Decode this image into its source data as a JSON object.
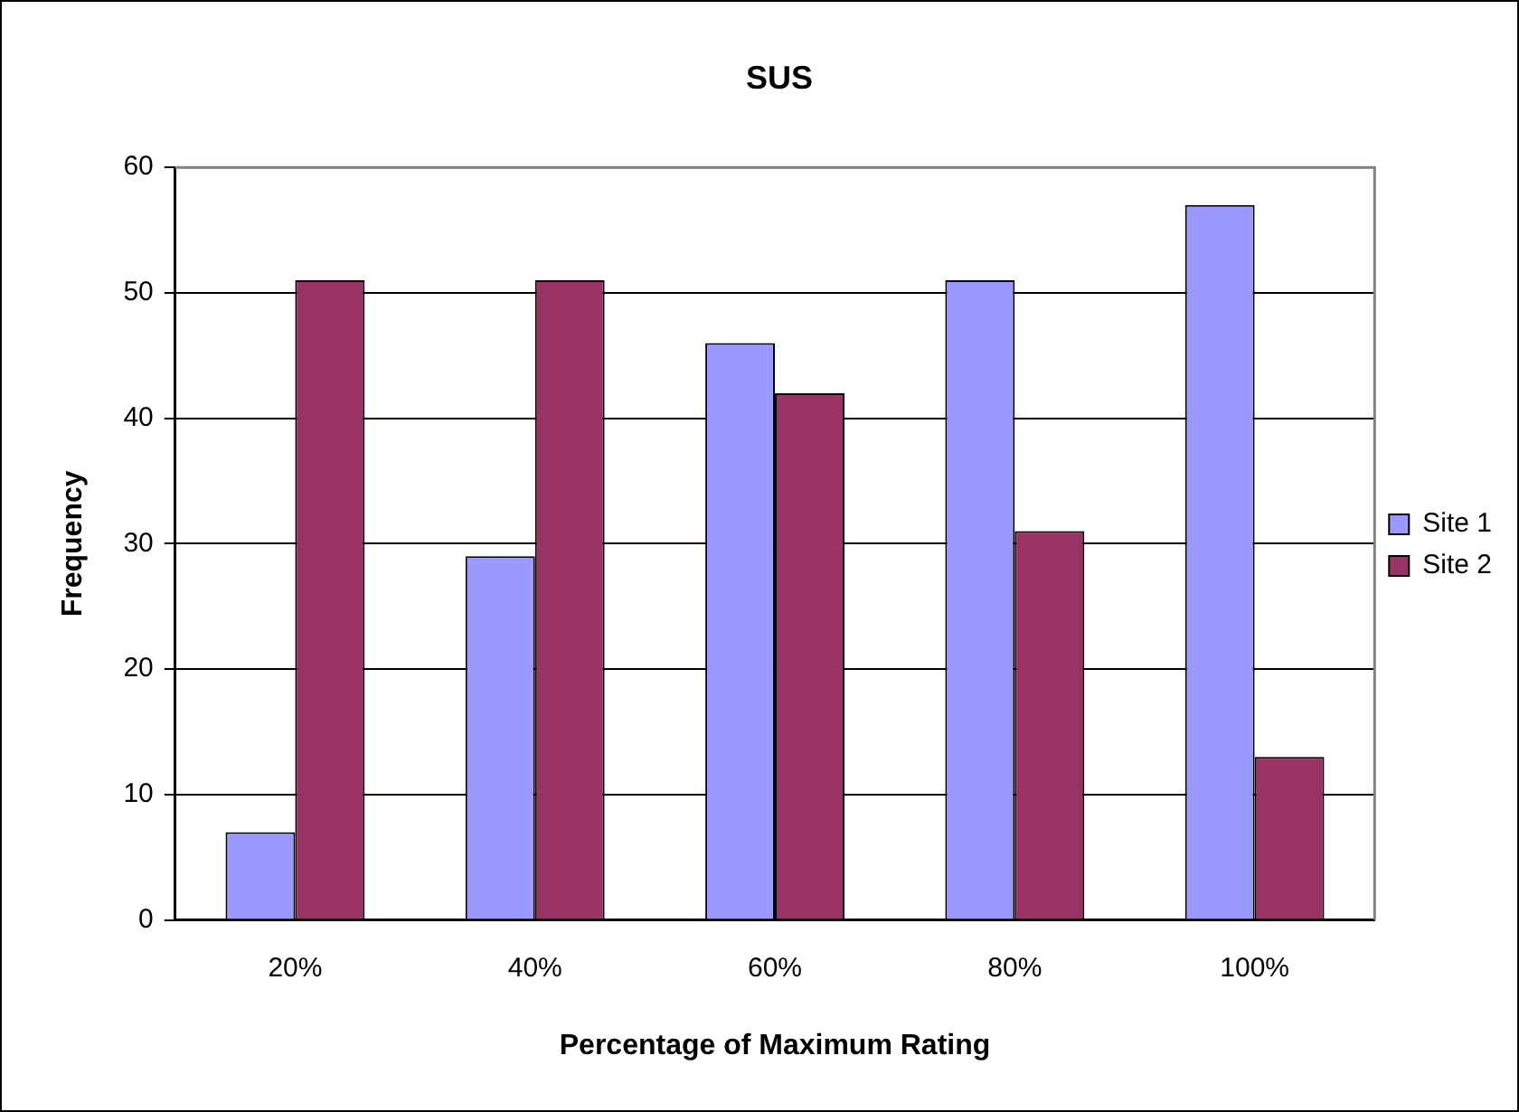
{
  "chart_data": {
    "type": "bar",
    "title": "SUS",
    "xlabel": "Percentage of Maximum Rating",
    "ylabel": "Frequency",
    "categories": [
      "20%",
      "40%",
      "60%",
      "80%",
      "100%"
    ],
    "series": [
      {
        "name": "Site 1",
        "color": "#9999ff",
        "values": [
          7,
          29,
          46,
          51,
          57
        ]
      },
      {
        "name": "Site 2",
        "color": "#993366",
        "values": [
          51,
          51,
          42,
          31,
          13
        ]
      }
    ],
    "ylim": [
      0,
      60
    ],
    "yticks": [
      0,
      10,
      20,
      30,
      40,
      50,
      60
    ],
    "grid": "y",
    "legend": "right"
  }
}
